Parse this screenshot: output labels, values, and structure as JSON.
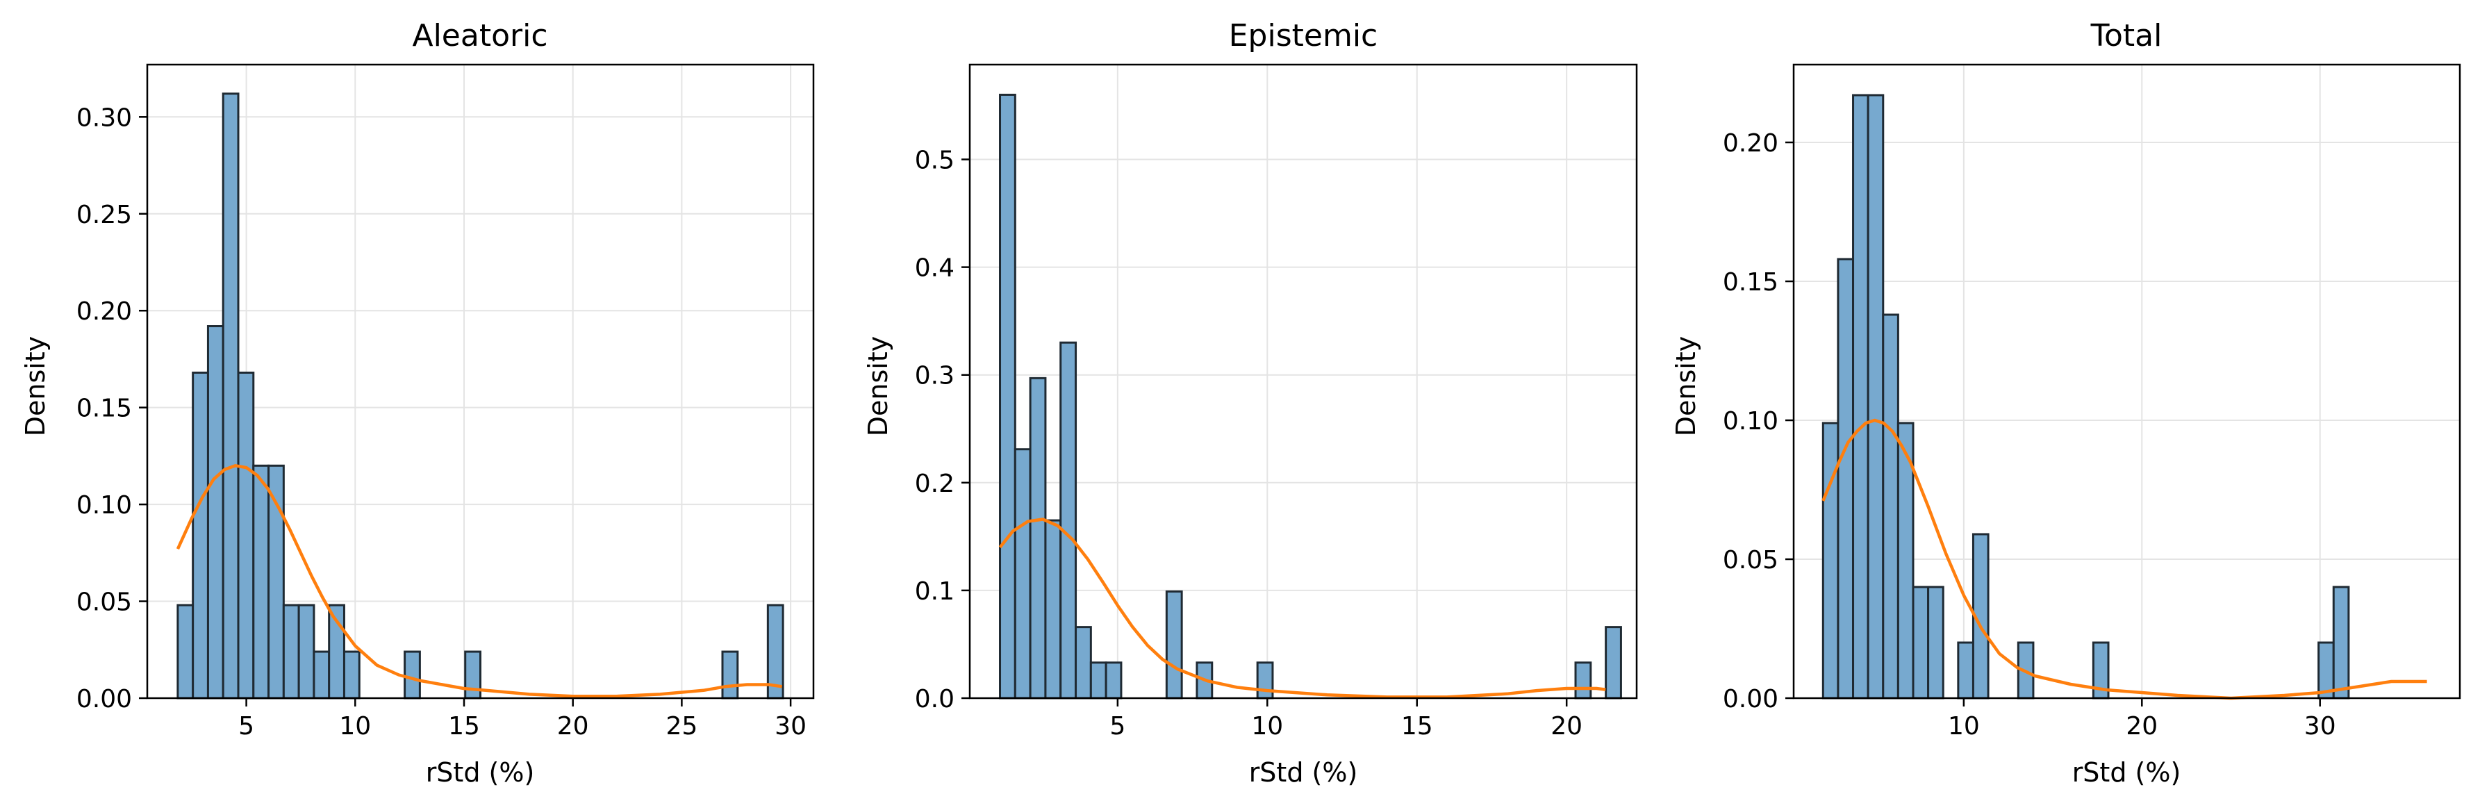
{
  "chart_data": [
    {
      "type": "bar",
      "title": "Aleatoric",
      "xlabel": "rStd (%)",
      "ylabel": "Density",
      "xlim": [
        0.45,
        31.05
      ],
      "ylim": [
        0,
        0.327
      ],
      "xticks": [
        5,
        10,
        15,
        20,
        25,
        30
      ],
      "xtick_labels": [
        "5",
        "10",
        "15",
        "20",
        "25",
        "30"
      ],
      "yticks": [
        0,
        0.05,
        0.1,
        0.15,
        0.2,
        0.25,
        0.3
      ],
      "ytick_labels": [
        "0.00",
        "0.05",
        "0.10",
        "0.15",
        "0.20",
        "0.25",
        "0.30"
      ],
      "grid": true,
      "bins": {
        "start": 1.85,
        "width": 0.695,
        "values": [
          0.048,
          0.168,
          0.192,
          0.312,
          0.168,
          0.12,
          0.12,
          0.048,
          0.048,
          0.024,
          0.048,
          0.024,
          0,
          0,
          0,
          0.024,
          0,
          0,
          0,
          0.024,
          0,
          0,
          0,
          0,
          0,
          0,
          0,
          0,
          0,
          0,
          0,
          0,
          0,
          0,
          0,
          0,
          0.024,
          0,
          0,
          0.048
        ]
      },
      "kde": {
        "x": [
          1.85,
          2.5,
          3.0,
          3.5,
          4.0,
          4.5,
          5.0,
          5.5,
          6.0,
          6.5,
          7.0,
          7.5,
          8.0,
          8.5,
          9.0,
          10.0,
          11.0,
          12.0,
          13.0,
          14.0,
          15.0,
          16.0,
          18.0,
          20.0,
          22.0,
          24.0,
          26.0,
          27.0,
          28.0,
          29.0,
          29.6
        ],
        "y": [
          0.077,
          0.093,
          0.104,
          0.113,
          0.118,
          0.12,
          0.119,
          0.115,
          0.108,
          0.098,
          0.087,
          0.075,
          0.063,
          0.052,
          0.042,
          0.027,
          0.017,
          0.012,
          0.009,
          0.007,
          0.005,
          0.004,
          0.002,
          0.001,
          0.001,
          0.002,
          0.004,
          0.006,
          0.007,
          0.007,
          0.006
        ]
      }
    },
    {
      "type": "bar",
      "title": "Epistemic",
      "xlabel": "rStd (%)",
      "ylabel": "Density",
      "xlim": [
        0.06,
        22.34
      ],
      "ylim": [
        0,
        0.588
      ],
      "xticks": [
        5,
        10,
        15,
        20
      ],
      "xtick_labels": [
        "5",
        "10",
        "15",
        "20"
      ],
      "yticks": [
        0,
        0.1,
        0.2,
        0.3,
        0.4,
        0.5
      ],
      "ytick_labels": [
        "0.0",
        "0.1",
        "0.2",
        "0.3",
        "0.4",
        "0.5"
      ],
      "grid": true,
      "bins": {
        "start": 1.07,
        "width": 0.506,
        "values": [
          0.56,
          0.231,
          0.297,
          0.165,
          0.33,
          0.066,
          0.033,
          0.033,
          0,
          0,
          0,
          0.099,
          0,
          0.033,
          0,
          0,
          0,
          0.033,
          0,
          0,
          0,
          0,
          0,
          0,
          0,
          0,
          0,
          0,
          0,
          0,
          0,
          0,
          0,
          0,
          0,
          0,
          0,
          0,
          0.033,
          0,
          0.066
        ]
      },
      "kde": {
        "x": [
          1.07,
          1.5,
          2.0,
          2.5,
          3.0,
          3.5,
          4.0,
          4.5,
          5.0,
          5.5,
          6.0,
          6.5,
          7.0,
          8.0,
          9.0,
          10.0,
          11.0,
          12.0,
          14.0,
          16.0,
          18.0,
          19.0,
          20.0,
          21.0,
          21.3
        ],
        "y": [
          0.14,
          0.155,
          0.164,
          0.166,
          0.16,
          0.147,
          0.129,
          0.108,
          0.086,
          0.066,
          0.049,
          0.036,
          0.027,
          0.016,
          0.01,
          0.007,
          0.005,
          0.003,
          0.001,
          0.001,
          0.004,
          0.007,
          0.009,
          0.009,
          0.008
        ]
      }
    },
    {
      "type": "bar",
      "title": "Total",
      "xlabel": "rStd (%)",
      "ylabel": "Density",
      "xlim": [
        0.45,
        37.85
      ],
      "ylim": [
        0,
        0.228
      ],
      "xticks": [
        10,
        20,
        30
      ],
      "xtick_labels": [
        "10",
        "20",
        "30"
      ],
      "yticks": [
        0,
        0.05,
        0.1,
        0.15,
        0.2
      ],
      "ytick_labels": [
        "0.00",
        "0.05",
        "0.10",
        "0.15",
        "0.20"
      ],
      "grid": true,
      "bins": {
        "start": 2.1,
        "width": 0.843,
        "values": [
          0.099,
          0.158,
          0.217,
          0.217,
          0.138,
          0.099,
          0.04,
          0.04,
          0,
          0.02,
          0.059,
          0,
          0,
          0.02,
          0,
          0,
          0,
          0,
          0.02,
          0,
          0,
          0,
          0,
          0,
          0,
          0,
          0,
          0,
          0,
          0,
          0,
          0,
          0,
          0.02,
          0.04
        ]
      },
      "kde": {
        "x": [
          2.1,
          3.0,
          3.5,
          4.0,
          4.5,
          5.0,
          5.5,
          6.0,
          6.5,
          7.0,
          8.0,
          9.0,
          10.0,
          11.0,
          12.0,
          13.0,
          14.0,
          16.0,
          18.0,
          20.0,
          22.0,
          25.0,
          28.0,
          30.0,
          32.0,
          33.0,
          34.0,
          35.0,
          36.0
        ],
        "y": [
          0.071,
          0.085,
          0.092,
          0.096,
          0.099,
          0.1,
          0.099,
          0.096,
          0.091,
          0.085,
          0.069,
          0.052,
          0.037,
          0.025,
          0.016,
          0.011,
          0.008,
          0.005,
          0.003,
          0.002,
          0.001,
          0.0,
          0.001,
          0.002,
          0.004,
          0.005,
          0.006,
          0.006,
          0.006
        ]
      }
    }
  ],
  "colors": {
    "bar_fill": "#77a9cf",
    "bar_edge": "#1f2a33",
    "kde_line": "#ff7f0e",
    "grid": "#e4e4e4"
  }
}
